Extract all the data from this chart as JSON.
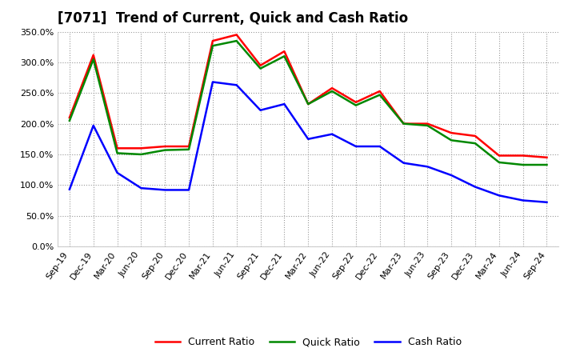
{
  "title": "[7071]  Trend of Current, Quick and Cash Ratio",
  "x_labels": [
    "Sep-19",
    "Dec-19",
    "Mar-20",
    "Jun-20",
    "Sep-20",
    "Dec-20",
    "Mar-21",
    "Jun-21",
    "Sep-21",
    "Dec-21",
    "Mar-22",
    "Jun-22",
    "Sep-22",
    "Dec-22",
    "Mar-23",
    "Jun-23",
    "Sep-23",
    "Dec-23",
    "Mar-24",
    "Jun-24",
    "Sep-24"
  ],
  "current_ratio": [
    210,
    312,
    160,
    160,
    163,
    163,
    335,
    345,
    295,
    318,
    232,
    258,
    235,
    253,
    200,
    200,
    185,
    180,
    148,
    148,
    145
  ],
  "quick_ratio": [
    205,
    305,
    152,
    150,
    157,
    158,
    327,
    335,
    290,
    310,
    232,
    253,
    230,
    247,
    200,
    197,
    173,
    168,
    137,
    133,
    133
  ],
  "cash_ratio": [
    93,
    197,
    120,
    95,
    92,
    92,
    268,
    263,
    222,
    232,
    175,
    183,
    163,
    163,
    136,
    130,
    116,
    97,
    83,
    75,
    72
  ],
  "current_color": "#ff0000",
  "quick_color": "#008800",
  "cash_color": "#0000ff",
  "line_width": 1.8,
  "ylim": [
    0,
    350
  ],
  "yticks": [
    0,
    50,
    100,
    150,
    200,
    250,
    300,
    350
  ],
  "background_color": "#ffffff",
  "plot_bg_color": "#ffffff",
  "grid_color": "#999999",
  "title_fontsize": 12,
  "tick_fontsize": 8,
  "legend_fontsize": 9
}
